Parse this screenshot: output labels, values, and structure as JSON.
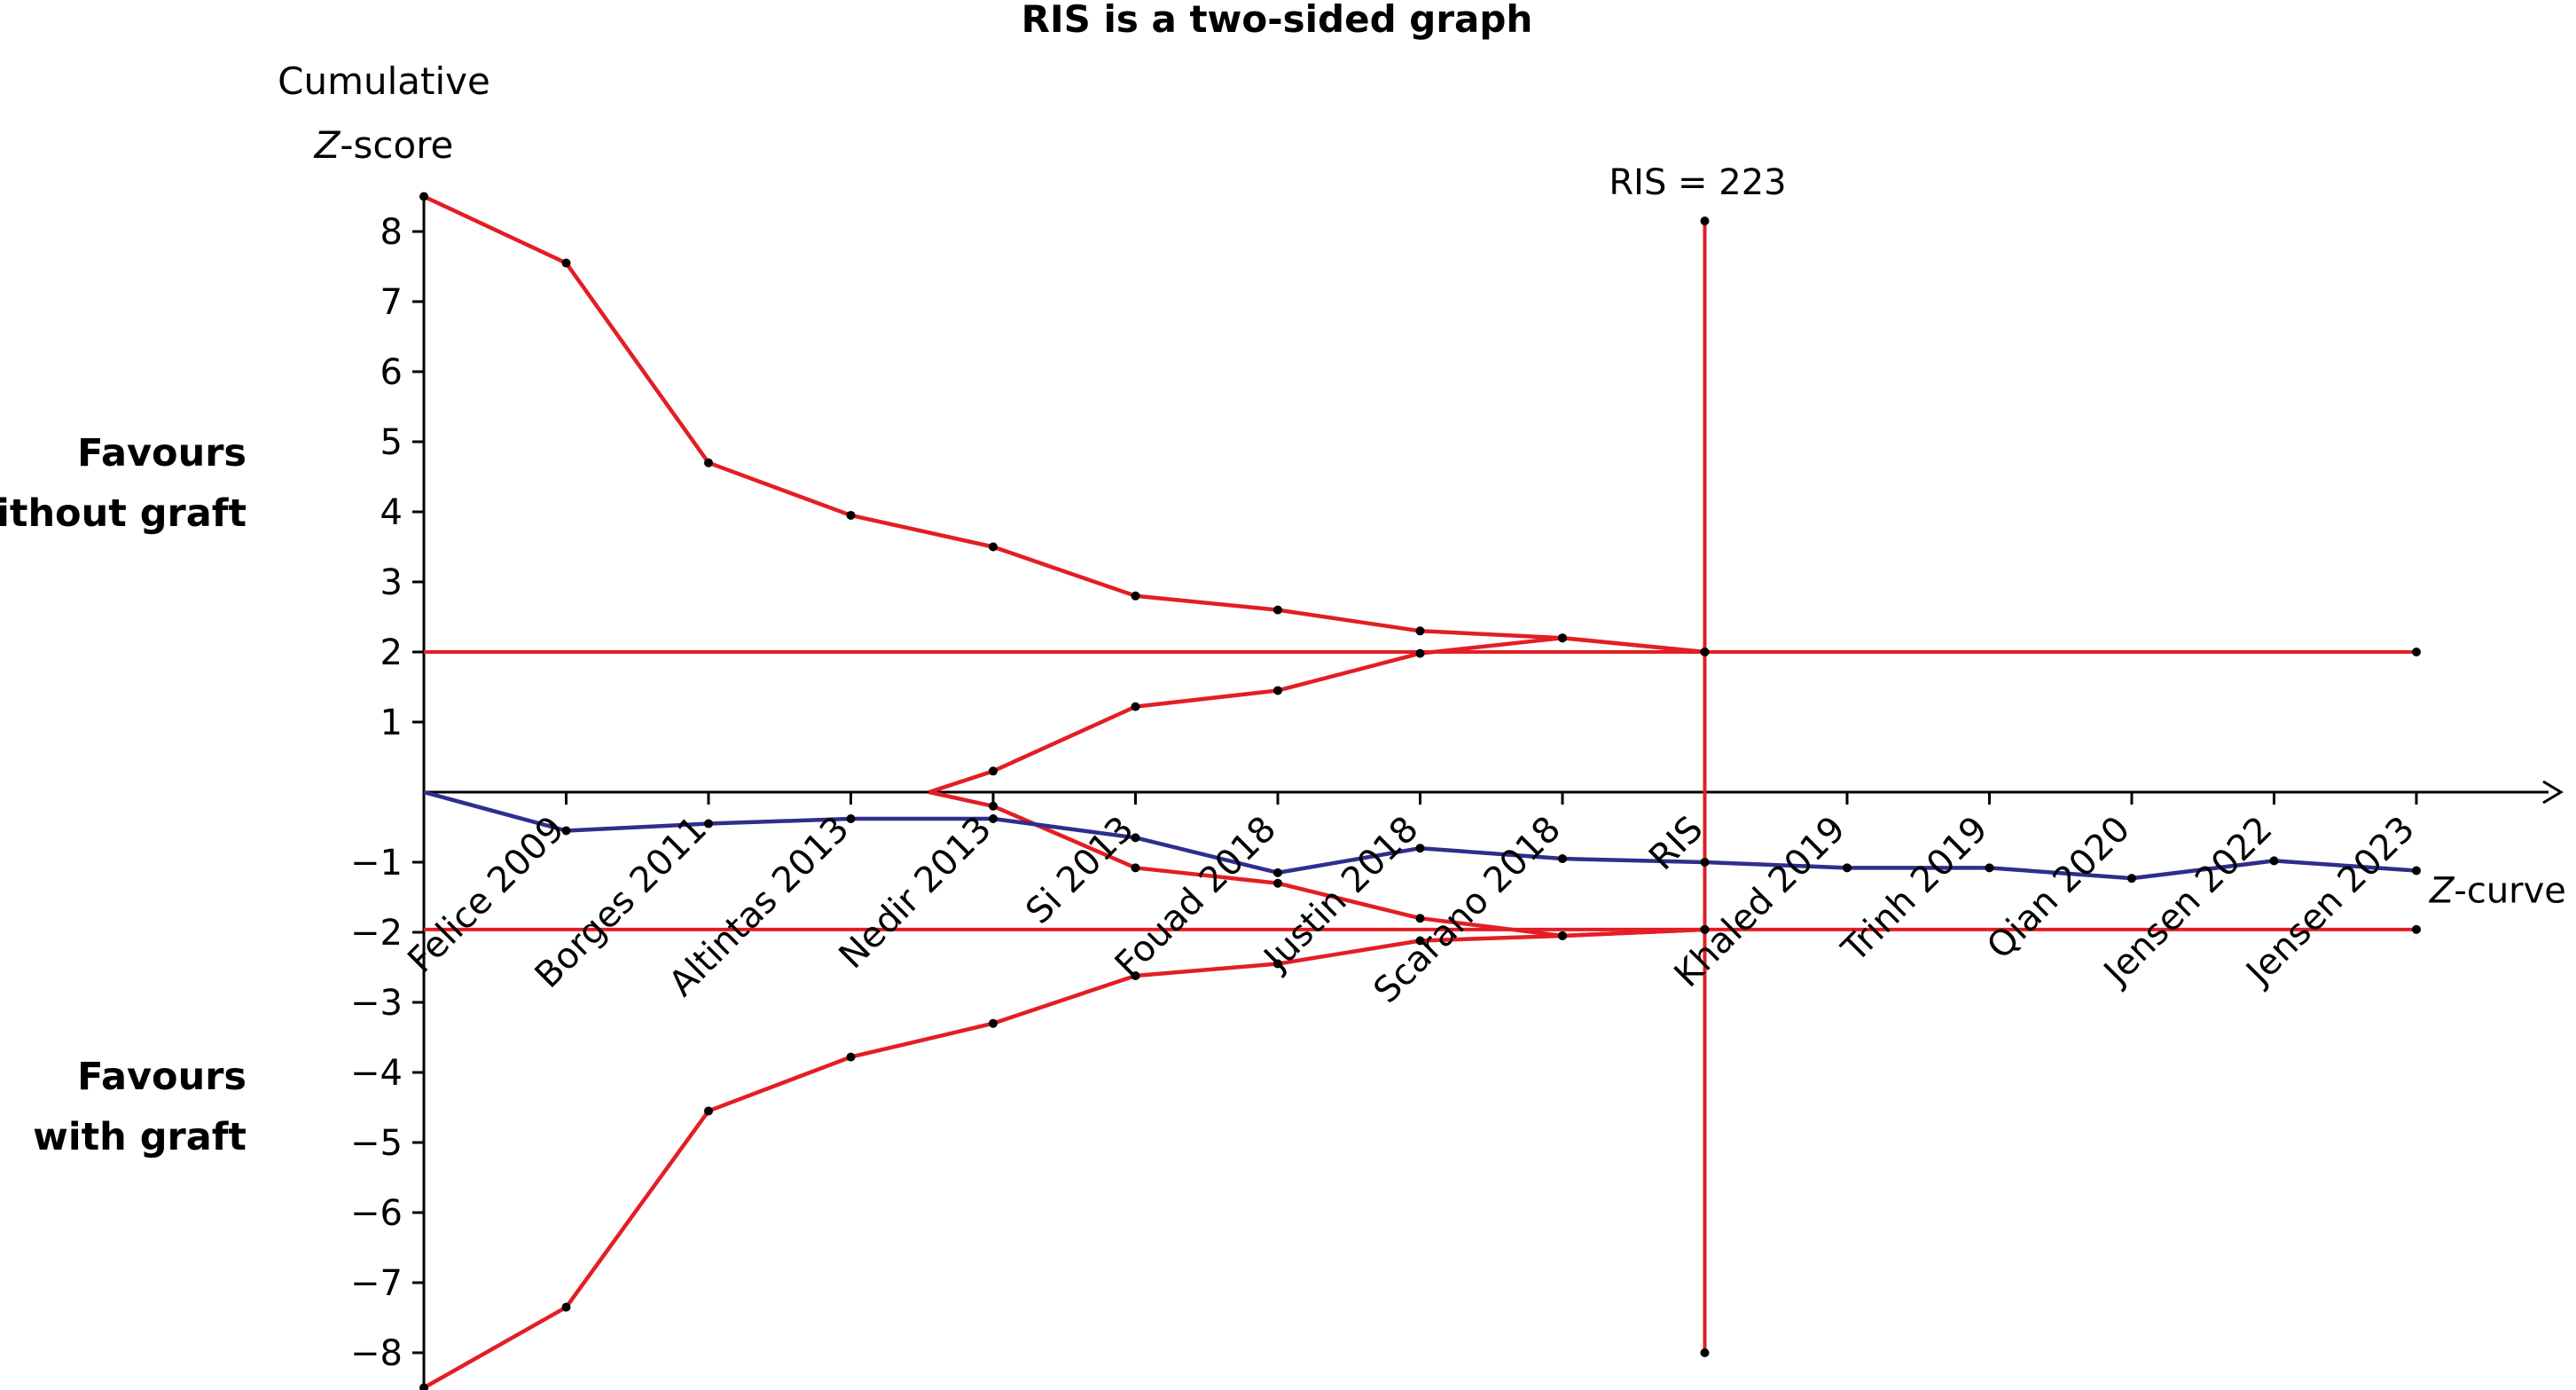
{
  "chart_data": {
    "type": "line",
    "title": "RIS is a two-sided graph",
    "ylabel_line1": "Cumulative",
    "ylabel_z": "Z",
    "ylabel_rest": "-score",
    "side_labels": {
      "top": [
        "Favours",
        "without graft"
      ],
      "bottom": [
        "Favours",
        "with graft"
      ]
    },
    "ylim": [
      -8.5,
      8.5
    ],
    "yticks": [
      8,
      7,
      6,
      5,
      4,
      3,
      2,
      1,
      -1,
      -2,
      -3,
      -4,
      -5,
      -6,
      -7,
      -8
    ],
    "ytick_labels": [
      "8",
      "7",
      "6",
      "5",
      "4",
      "3",
      "2",
      "1",
      "−1",
      "−2",
      "−3",
      "−4",
      "−5",
      "−6",
      "−7",
      "−8"
    ],
    "categories": [
      "Felice 2009",
      "Borges 2011",
      "Altintas 2013",
      "Nedir 2013",
      "Si 2013",
      "Fouad 2018",
      "Justin 2018",
      "Scarano 2018",
      "RIS",
      "Khaled 2019",
      "Trinh 2019",
      "Qian 2020",
      "Jensen 2022",
      "Jensen 2023"
    ],
    "ris_label": "RIS = 223",
    "z_curve_label": "Z-curve",
    "ris_index": 9,
    "ris_line_range": [
      -8.0,
      8.15
    ],
    "conventional_boundaries": [
      2.0,
      -1.96
    ],
    "series": [
      {
        "role": "z_curve",
        "color": "#2e2e8c",
        "x": [
          0,
          1,
          2,
          3,
          4,
          5,
          6,
          7,
          8,
          9,
          10,
          11,
          12,
          13,
          14
        ],
        "values": [
          0.0,
          -0.55,
          -0.45,
          -0.38,
          -0.38,
          -0.65,
          -1.15,
          -0.8,
          -0.95,
          -1.0,
          -1.08,
          -1.08,
          -1.23,
          -0.98,
          -1.12
        ]
      },
      {
        "role": "upper_monitoring_boundary",
        "color": "#e31e24",
        "x": [
          0,
          1,
          2,
          3,
          4,
          5,
          6,
          7,
          8,
          9
        ],
        "values": [
          8.5,
          7.55,
          4.7,
          3.95,
          3.5,
          2.8,
          2.6,
          2.3,
          2.2,
          2.0
        ]
      },
      {
        "role": "lower_monitoring_boundary",
        "color": "#e31e24",
        "x": [
          0,
          1,
          2,
          3,
          4,
          5,
          6,
          7,
          8,
          9
        ],
        "values": [
          -8.5,
          -7.35,
          -4.55,
          -3.78,
          -3.3,
          -2.62,
          -2.45,
          -2.12,
          -2.05,
          -1.96
        ]
      },
      {
        "role": "upper_futility_boundary",
        "color": "#e31e24",
        "x": [
          3.55,
          4,
          5,
          6,
          7,
          8,
          9
        ],
        "values": [
          0.0,
          0.3,
          1.22,
          1.45,
          1.98,
          2.2,
          2.0
        ]
      },
      {
        "role": "lower_futility_boundary",
        "color": "#e31e24",
        "x": [
          3.55,
          4,
          5,
          6,
          7,
          8,
          9
        ],
        "values": [
          0.0,
          -0.2,
          -1.08,
          -1.3,
          -1.8,
          -2.05,
          -1.96
        ]
      }
    ],
    "end_markers": [
      {
        "x": 14,
        "y": 2.0
      },
      {
        "x": 14,
        "y": -1.96
      }
    ]
  }
}
